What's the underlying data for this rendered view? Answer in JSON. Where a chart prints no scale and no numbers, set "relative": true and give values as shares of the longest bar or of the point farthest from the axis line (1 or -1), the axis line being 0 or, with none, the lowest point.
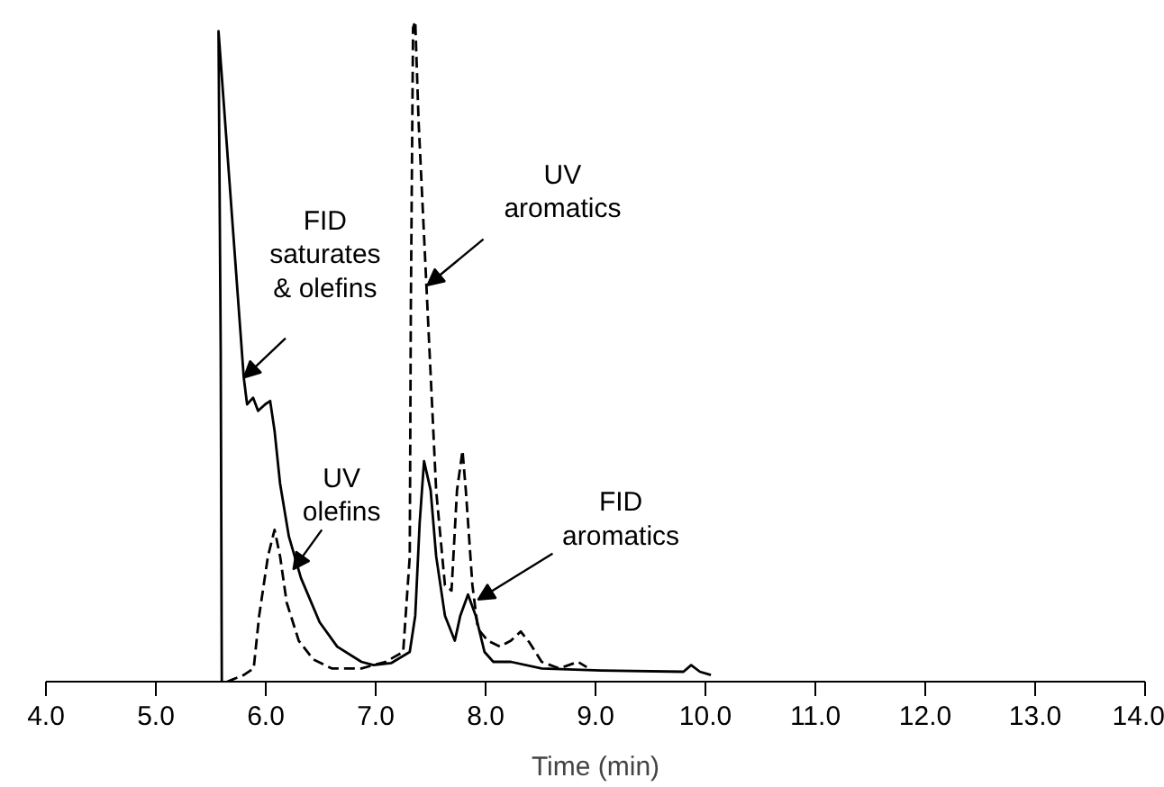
{
  "chart_data": {
    "type": "line",
    "relative": true,
    "xlabel": "Time (min)",
    "xlim": [
      4.0,
      14.0
    ],
    "xticks": [
      {
        "value": 4,
        "label": "4.0"
      },
      {
        "value": 5,
        "label": "5.0"
      },
      {
        "value": 6,
        "label": "6.0"
      },
      {
        "value": 7,
        "label": "7.0"
      },
      {
        "value": 8,
        "label": "8.0"
      },
      {
        "value": 9,
        "label": "9.0"
      },
      {
        "value": 10,
        "label": "10.0"
      },
      {
        "value": 11,
        "label": "11.0"
      },
      {
        "value": 12,
        "label": "12.0"
      },
      {
        "value": 13,
        "label": "13.0"
      },
      {
        "value": 14,
        "label": "14.0"
      }
    ],
    "grid": false,
    "marker": "none",
    "series": [
      {
        "color": "#000000",
        "line_style": "solid",
        "x": [
          5.6,
          5.59,
          5.57,
          5.8,
          5.83,
          5.885,
          5.93,
          5.995,
          6.04,
          6.08,
          6.13,
          6.21,
          6.32,
          6.49,
          6.65,
          6.87,
          6.98,
          7.14,
          7.31,
          7.36,
          7.4,
          7.44,
          7.5,
          7.55,
          7.63,
          7.72,
          7.77,
          7.84,
          7.91,
          7.99,
          8.07,
          8.23,
          8.51,
          9.05,
          9.8,
          9.87,
          9.95,
          10.05
        ],
        "values": [
          0,
          0.5,
          0.985,
          0.46,
          0.42,
          0.43,
          0.41,
          0.42,
          0.425,
          0.38,
          0.3,
          0.22,
          0.157,
          0.09,
          0.053,
          0.03,
          0.025,
          0.028,
          0.045,
          0.1,
          0.24,
          0.334,
          0.29,
          0.19,
          0.1,
          0.062,
          0.1,
          0.132,
          0.1,
          0.045,
          0.03,
          0.03,
          0.02,
          0.017,
          0.015,
          0.025,
          0.015,
          0.01
        ]
      },
      {
        "color": "#000000",
        "line_style": "dashed",
        "x": [
          5.65,
          5.8,
          5.89,
          5.94,
          6.02,
          6.08,
          6.13,
          6.19,
          6.3,
          6.43,
          6.6,
          6.87,
          7.09,
          7.25,
          7.31,
          7.32,
          7.34,
          7.36,
          7.39,
          7.47,
          7.55,
          7.63,
          7.69,
          7.74,
          7.79,
          7.82,
          7.88,
          7.93,
          8.02,
          8.13,
          8.23,
          8.32,
          8.4,
          8.51,
          8.67,
          8.84,
          8.92
        ],
        "values": [
          0,
          0.01,
          0.02,
          0.1,
          0.19,
          0.23,
          0.19,
          0.12,
          0.062,
          0.034,
          0.02,
          0.02,
          0.03,
          0.045,
          0.19,
          0.57,
          0.99,
          1.0,
          0.85,
          0.57,
          0.29,
          0.146,
          0.138,
          0.29,
          0.35,
          0.29,
          0.146,
          0.08,
          0.062,
          0.053,
          0.062,
          0.076,
          0.059,
          0.03,
          0.02,
          0.03,
          0.022
        ]
      }
    ],
    "annotations": [
      {
        "text": "FID\nsaturates\n& olefins",
        "x": 5.8,
        "y": 0.46
      },
      {
        "text": "UV\nolefins",
        "x": 6.25,
        "y": 0.17
      },
      {
        "text": "UV\naromatics",
        "x": 7.47,
        "y": 0.6
      },
      {
        "text": "FID\naromatics",
        "x": 7.93,
        "y": 0.124
      }
    ]
  }
}
